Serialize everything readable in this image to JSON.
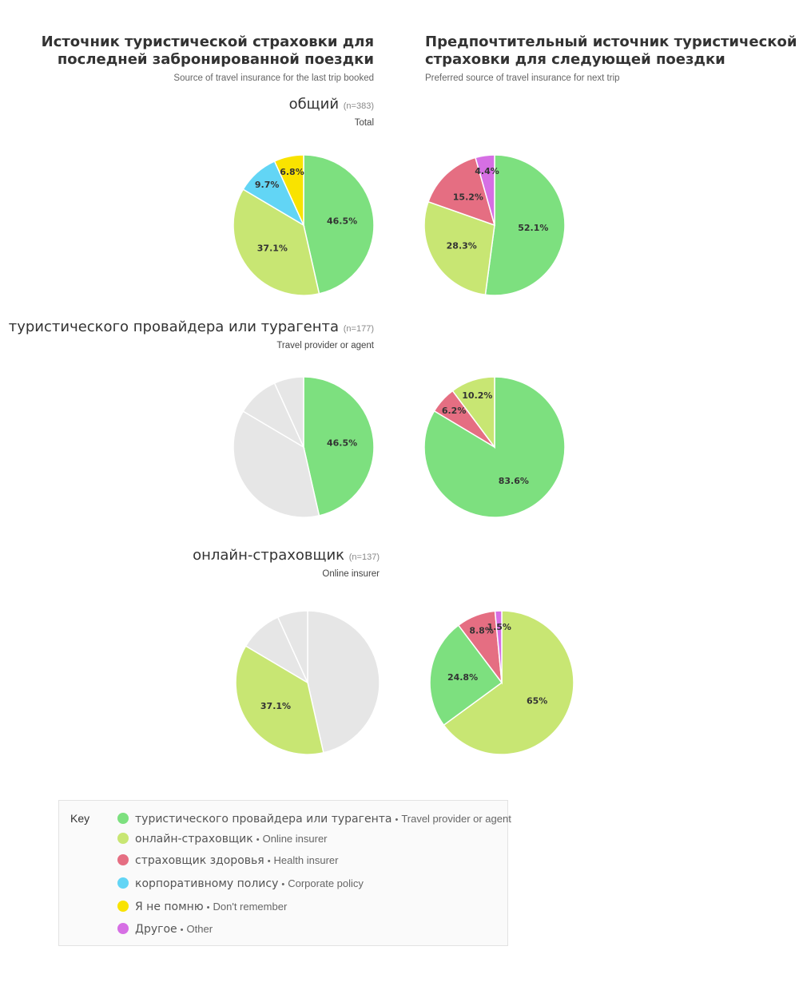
{
  "headers": {
    "left": {
      "title_line1": "Источник туристической страховки для",
      "title_line2": "последней забронированной поездки",
      "subtitle": "Source of travel insurance for the last trip booked"
    },
    "right": {
      "title_line1": "Предпочтительный источник туристической",
      "title_line2": "страховки для следующей поездки",
      "subtitle": "Preferred source of travel insurance for next trip"
    }
  },
  "groups": [
    {
      "title": "общий",
      "n": "(n=383)",
      "subtitle": "Total"
    },
    {
      "title": "туристического провайдера или турагента",
      "n": "(n=177)",
      "subtitle": "Travel provider or agent"
    },
    {
      "title": "онлайн-страховщик",
      "n": "(n=137)",
      "subtitle": "Online insurer"
    }
  ],
  "colors": {
    "travel_provider": "#7de07f",
    "online_insurer": "#c8e673",
    "health_insurer": "#e56e82",
    "corporate_policy": "#62d5f5",
    "dont_remember": "#f9e300",
    "other": "#d66fe4",
    "muted": "#e6e6e6"
  },
  "chart_data": [
    {
      "type": "pie",
      "title": "общий — Source of travel insurance for the last trip booked",
      "slices": [
        {
          "category": "travel_provider",
          "label": "46.5%",
          "value": 46.5
        },
        {
          "category": "online_insurer",
          "label": "37.1%",
          "value": 37.1
        },
        {
          "category": "corporate_policy",
          "label": "9.7%",
          "value": 9.7
        },
        {
          "category": "dont_remember",
          "label": "6.8%",
          "value": 6.8
        }
      ]
    },
    {
      "type": "pie",
      "title": "общий — Preferred source of travel insurance for next trip",
      "slices": [
        {
          "category": "travel_provider",
          "label": "52.1%",
          "value": 52.1
        },
        {
          "category": "online_insurer",
          "label": "28.3%",
          "value": 28.3
        },
        {
          "category": "health_insurer",
          "label": "15.2%",
          "value": 15.2
        },
        {
          "category": "other",
          "label": "4.4%",
          "value": 4.4
        }
      ]
    },
    {
      "type": "pie",
      "title": "туристического провайдера или турагента — last trip booked",
      "slices": [
        {
          "category": "travel_provider",
          "label": "46.5%",
          "value": 46.5
        },
        {
          "category": "online_insurer",
          "label": "",
          "value": 37.1,
          "muted": true
        },
        {
          "category": "corporate_policy",
          "label": "",
          "value": 9.7,
          "muted": true
        },
        {
          "category": "dont_remember",
          "label": "",
          "value": 6.8,
          "muted": true
        }
      ]
    },
    {
      "type": "pie",
      "title": "туристического провайдера или турагента — next trip",
      "slices": [
        {
          "category": "travel_provider",
          "label": "83.6%",
          "value": 83.6
        },
        {
          "category": "health_insurer",
          "label": "6.2%",
          "value": 6.2
        },
        {
          "category": "online_insurer",
          "label": "10.2%",
          "value": 10.2
        }
      ]
    },
    {
      "type": "pie",
      "title": "онлайн-страховщик — last trip booked",
      "slices": [
        {
          "category": "travel_provider",
          "label": "",
          "value": 46.5,
          "muted": true
        },
        {
          "category": "online_insurer",
          "label": "37.1%",
          "value": 37.1
        },
        {
          "category": "corporate_policy",
          "label": "",
          "value": 9.7,
          "muted": true
        },
        {
          "category": "dont_remember",
          "label": "",
          "value": 6.8,
          "muted": true
        }
      ]
    },
    {
      "type": "pie",
      "title": "онлайн-страховщик — next trip",
      "slices": [
        {
          "category": "online_insurer",
          "label": "65%",
          "value": 65
        },
        {
          "category": "travel_provider",
          "label": "24.8%",
          "value": 24.8
        },
        {
          "category": "health_insurer",
          "label": "8.8%",
          "value": 8.8
        },
        {
          "category": "other",
          "label": "1.5%",
          "value": 1.5
        }
      ]
    }
  ],
  "legend": {
    "key_label": "Key",
    "separator": "•",
    "items": [
      {
        "category": "travel_provider",
        "ru": "туристического провайдера или турагента",
        "en": "Travel provider or agent"
      },
      {
        "category": "online_insurer",
        "ru": "онлайн-страховщик",
        "en": "Online insurer"
      },
      {
        "category": "health_insurer",
        "ru": "страховщик здоровья",
        "en": "Health insurer"
      },
      {
        "category": "corporate_policy",
        "ru": "корпоративному полису",
        "en": "Corporate policy"
      },
      {
        "category": "dont_remember",
        "ru": "Я не помню",
        "en": "Don't remember"
      },
      {
        "category": "other",
        "ru": "Другое",
        "en": "Other"
      }
    ]
  }
}
